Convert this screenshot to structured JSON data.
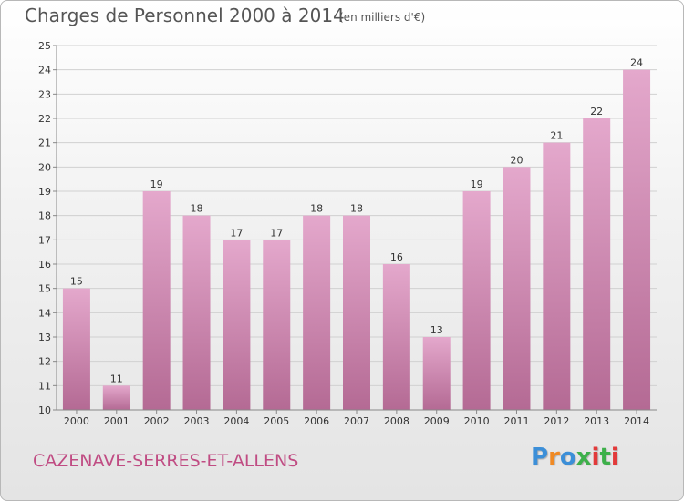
{
  "title": "Charges de Personnel 2000 à 2014",
  "subtitle": "(en milliers d'€)",
  "commune": "CAZENAVE-SERRES-ET-ALLENS",
  "logo": {
    "text": "Proxiti",
    "letter_colors": [
      "#3c8fd8",
      "#f08a24",
      "#3c8fd8",
      "#3db04a",
      "#e23a3a",
      "#3db04a",
      "#e23a3a"
    ]
  },
  "colors": {
    "bar_top": "#e4a8cc",
    "bar_bottom": "#b46a94",
    "grid": "#d0d0d0",
    "axis": "#888888",
    "commune": "#c04c83"
  },
  "chart_data": {
    "type": "bar",
    "categories": [
      "2000",
      "2001",
      "2002",
      "2003",
      "2004",
      "2005",
      "2006",
      "2007",
      "2008",
      "2009",
      "2010",
      "2011",
      "2012",
      "2013",
      "2014"
    ],
    "values": [
      15,
      11,
      19,
      18,
      17,
      17,
      18,
      18,
      16,
      13,
      19,
      20,
      21,
      22,
      24
    ],
    "title": "Charges de Personnel 2000 à 2014",
    "subtitle": "(en milliers d'€)",
    "ylim": [
      10,
      25
    ],
    "yticks": [
      10,
      11,
      12,
      13,
      14,
      15,
      16,
      17,
      18,
      19,
      20,
      21,
      22,
      23,
      24,
      25
    ],
    "grid": true,
    "legend": "none"
  }
}
